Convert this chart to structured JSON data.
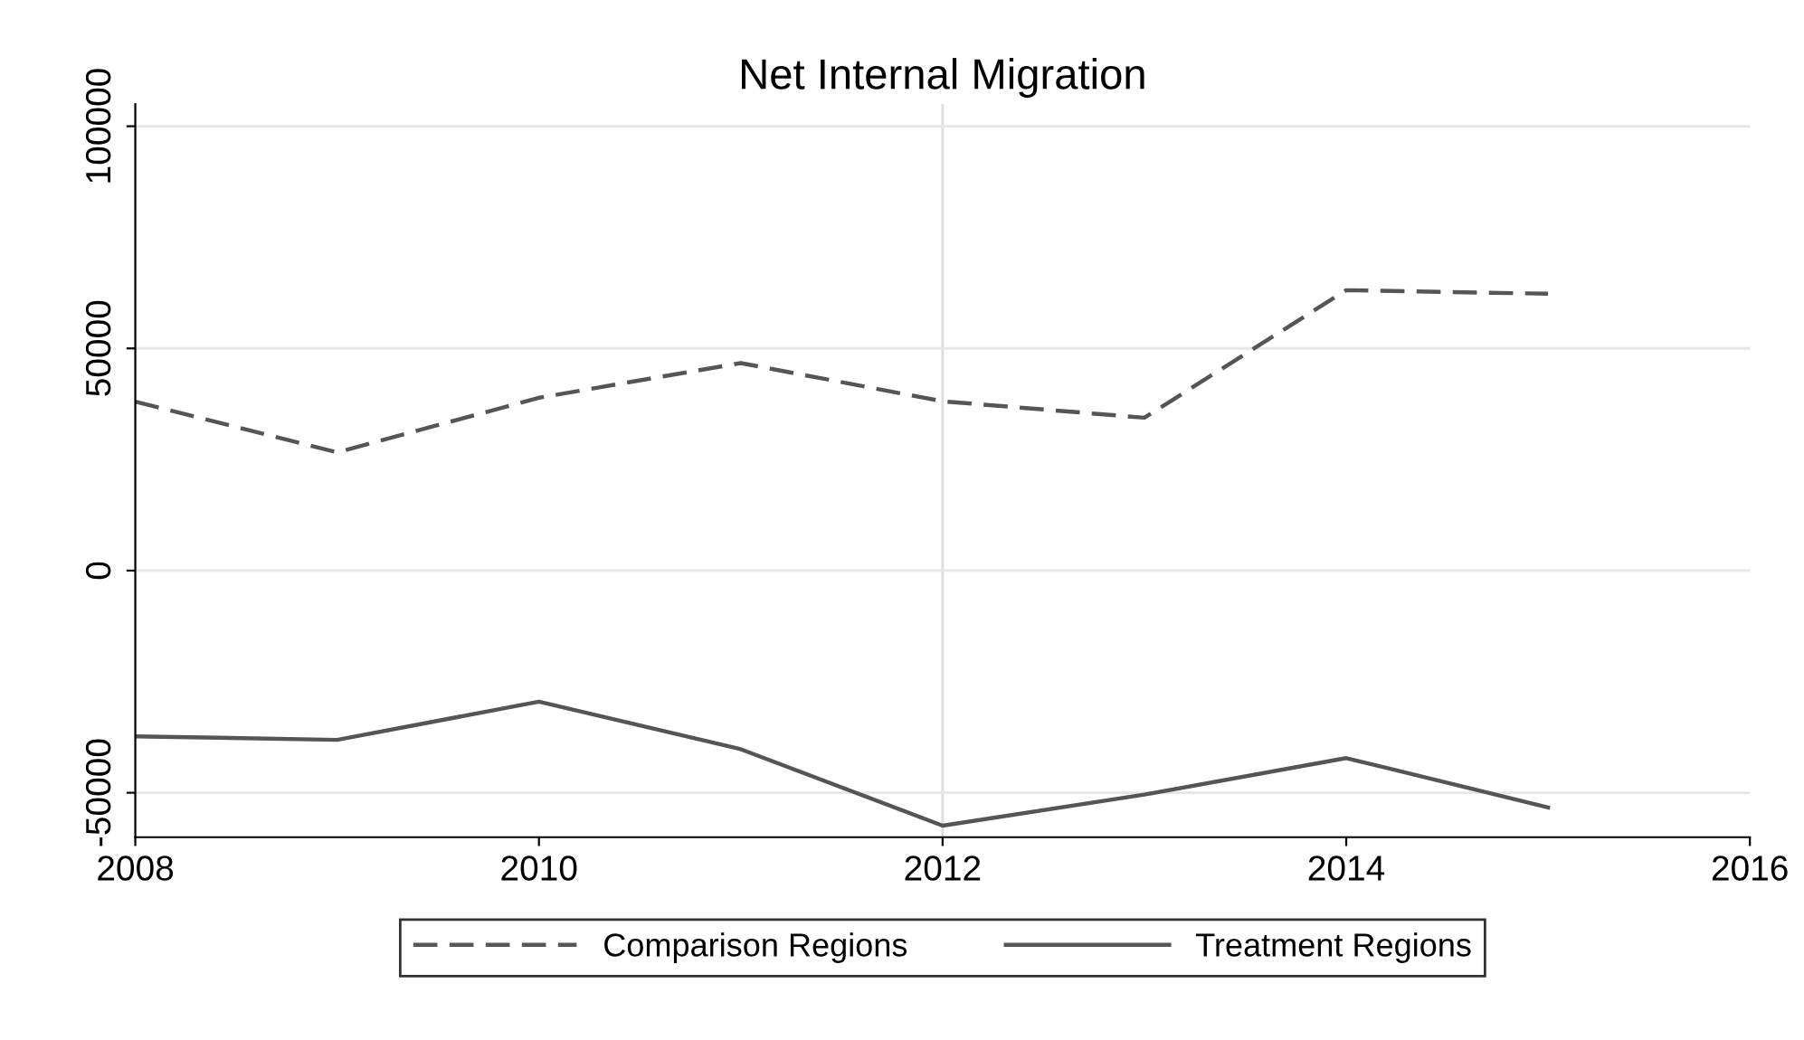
{
  "chart_data": {
    "type": "line",
    "title": "Net Internal Migration",
    "x": [
      2008,
      2009,
      2010,
      2011,
      2012,
      2013,
      2014,
      2015
    ],
    "series": [
      {
        "name": "Comparison Regions",
        "color": "#555555",
        "line_style": "dashed",
        "values": [
          38000,
          26600,
          38900,
          46700,
          38100,
          34400,
          63100,
          62300
        ]
      },
      {
        "name": "Treatment Regions",
        "color": "#555555",
        "line_style": "solid",
        "values": [
          -37300,
          -38100,
          -29500,
          -40200,
          -57400,
          -50400,
          -42200,
          -53300
        ]
      }
    ],
    "xlim": [
      2008,
      2016
    ],
    "xticks": [
      2008,
      2010,
      2012,
      2014,
      2016
    ],
    "ylim": [
      -60000,
      105000
    ],
    "yticks": [
      -50000,
      0,
      50000,
      100000
    ],
    "grid": "y",
    "legend": "bottom",
    "ref_lines": [
      {
        "axis": "x",
        "value": 2012,
        "color": "#dddddd"
      }
    ]
  }
}
